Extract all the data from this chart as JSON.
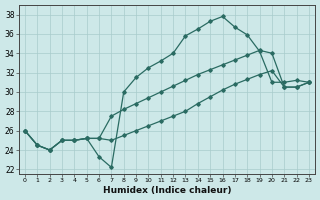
{
  "xlabel": "Humidex (Indice chaleur)",
  "xlim": [
    -0.5,
    23.5
  ],
  "ylim": [
    21.5,
    39.0
  ],
  "xticks": [
    0,
    1,
    2,
    3,
    4,
    5,
    6,
    7,
    8,
    9,
    10,
    11,
    12,
    13,
    14,
    15,
    16,
    17,
    18,
    19,
    20,
    21,
    22,
    23
  ],
  "yticks": [
    22,
    24,
    26,
    28,
    30,
    32,
    34,
    36,
    38
  ],
  "bg_color": "#cde8e8",
  "grid_color": "#a8cccc",
  "line_color": "#2a6b62",
  "line1_x": [
    0,
    1,
    2,
    3,
    4,
    5,
    6,
    7,
    8,
    9,
    10,
    11,
    12,
    13,
    14,
    15,
    16,
    17,
    18,
    19,
    20,
    21,
    22,
    23
  ],
  "line1_y": [
    26.0,
    24.5,
    24.0,
    25.0,
    25.0,
    25.2,
    23.3,
    22.2,
    30.0,
    31.5,
    32.5,
    33.2,
    34.0,
    35.8,
    36.5,
    37.3,
    37.8,
    36.7,
    35.9,
    34.2,
    31.0,
    31.0,
    31.2,
    31.0
  ],
  "line2_x": [
    0,
    1,
    2,
    3,
    4,
    5,
    6,
    7,
    8,
    9,
    10,
    11,
    12,
    13,
    14,
    15,
    16,
    17,
    18,
    19,
    20,
    21,
    22,
    23
  ],
  "line2_y": [
    26.0,
    24.5,
    24.0,
    25.0,
    25.0,
    25.2,
    25.2,
    27.5,
    28.2,
    28.8,
    29.4,
    30.0,
    30.6,
    31.2,
    31.8,
    32.3,
    32.8,
    33.3,
    33.8,
    34.3,
    34.0,
    30.5,
    30.5,
    31.0
  ],
  "line3_x": [
    0,
    1,
    2,
    3,
    4,
    5,
    6,
    7,
    8,
    9,
    10,
    11,
    12,
    13,
    14,
    15,
    16,
    17,
    18,
    19,
    20,
    21,
    22,
    23
  ],
  "line3_y": [
    26.0,
    24.5,
    24.0,
    25.0,
    25.0,
    25.2,
    25.2,
    25.0,
    25.5,
    26.0,
    26.5,
    27.0,
    27.5,
    28.0,
    28.8,
    29.5,
    30.2,
    30.8,
    31.3,
    31.8,
    32.2,
    30.5,
    30.5,
    31.0
  ]
}
